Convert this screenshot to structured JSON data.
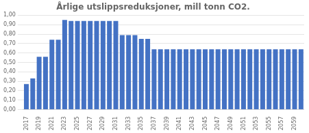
{
  "chart_data": {
    "type": "bar",
    "title": "Årlige utslippsreduksjoner, mill tonn CO2.",
    "categories": [
      "2017",
      null,
      "2019",
      null,
      "2021",
      null,
      "2023",
      null,
      "2025",
      null,
      "2027",
      null,
      "2029",
      null,
      "2031",
      null,
      "2033",
      null,
      "2035",
      null,
      "2037",
      null,
      "2039",
      null,
      "2041",
      null,
      "2043",
      null,
      "2045",
      null,
      "2047",
      null,
      "2049",
      null,
      "2051",
      null,
      "2053",
      null,
      "2055",
      null,
      "2057",
      null,
      "2059",
      null
    ],
    "values": [
      0.27,
      0.33,
      0.56,
      0.56,
      0.74,
      0.74,
      0.95,
      0.94,
      0.94,
      0.94,
      0.94,
      0.94,
      0.94,
      0.94,
      0.94,
      0.79,
      0.79,
      0.79,
      0.75,
      0.75,
      0.64,
      0.64,
      0.64,
      0.64,
      0.64,
      0.64,
      0.64,
      0.64,
      0.64,
      0.64,
      0.64,
      0.64,
      0.64,
      0.64,
      0.64,
      0.64,
      0.64,
      0.64,
      0.64,
      0.64,
      0.64,
      0.64,
      0.64,
      0.64
    ],
    "color": "#4472C4",
    "ylim": [
      0,
      1.0
    ],
    "yticks": [
      {
        "value": 0.0,
        "label": "0,00"
      },
      {
        "value": 0.1,
        "label": "0,10"
      },
      {
        "value": 0.2,
        "label": "0,20"
      },
      {
        "value": 0.3,
        "label": "0,30"
      },
      {
        "value": 0.4,
        "label": "0,40"
      },
      {
        "value": 0.5,
        "label": "0,50"
      },
      {
        "value": 0.6,
        "label": "0,60"
      },
      {
        "value": 0.7,
        "label": "0,70"
      },
      {
        "value": 0.8,
        "label": "0,80"
      },
      {
        "value": 0.9,
        "label": "0,90"
      },
      {
        "value": 1.0,
        "label": "1,00"
      }
    ],
    "grid": true
  }
}
